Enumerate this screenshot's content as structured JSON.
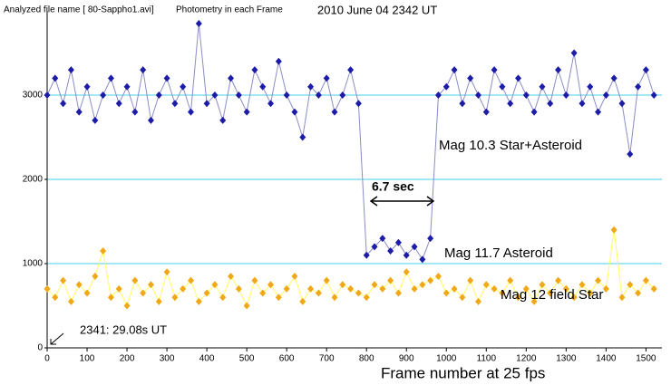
{
  "chart_data": {
    "type": "line",
    "header": [
      "Analyzed file name [ 80-Sappho1.avi]",
      "Photometry in each Frame"
    ],
    "title": "2010 June 04  2342 UT",
    "x_label": "Frame number at 25 fps",
    "annotations": [
      "Mag 10.3 Star+Asteroid",
      "6.7 sec",
      "Mag 11.7 Asteroid",
      "Mag 12 field Star",
      "2341: 29.08s UT"
    ],
    "x": [
      0,
      20,
      40,
      60,
      80,
      100,
      120,
      140,
      160,
      180,
      200,
      220,
      240,
      260,
      280,
      300,
      320,
      340,
      360,
      380,
      400,
      420,
      440,
      460,
      480,
      500,
      520,
      540,
      560,
      580,
      600,
      620,
      640,
      660,
      680,
      700,
      720,
      740,
      760,
      780,
      800,
      820,
      840,
      860,
      880,
      900,
      920,
      940,
      960,
      980,
      1000,
      1020,
      1040,
      1060,
      1080,
      1100,
      1120,
      1140,
      1160,
      1180,
      1200,
      1220,
      1240,
      1260,
      1280,
      1300,
      1320,
      1340,
      1360,
      1380,
      1400,
      1420,
      1440,
      1460,
      1480,
      1500,
      1520
    ],
    "series": [
      {
        "name": "Mag 10.3 Star+Asteroid",
        "color": "#1c1ca8",
        "line_color": "#8c8cc8",
        "values": [
          3000,
          3200,
          2900,
          3300,
          2800,
          3100,
          2700,
          3000,
          3200,
          2900,
          3100,
          2800,
          3300,
          2700,
          3000,
          3200,
          2900,
          3100,
          2800,
          3850,
          2900,
          3000,
          2700,
          3200,
          3000,
          2800,
          3300,
          3100,
          2900,
          3400,
          3000,
          2800,
          2500,
          3100,
          3000,
          3200,
          2800,
          3000,
          3300,
          2900,
          1100,
          1200,
          1300,
          1150,
          1250,
          1100,
          1200,
          1050,
          1300,
          3000,
          3100,
          3300,
          2900,
          3200,
          3000,
          2800,
          3300,
          3100,
          2900,
          3200,
          3000,
          2800,
          3100,
          2900,
          3300,
          3000,
          3500,
          2900,
          3100,
          2800,
          3000,
          3200,
          2900,
          2300,
          3100,
          3300,
          3000
        ]
      },
      {
        "name": "Mag 12 field Star",
        "color": "#f0a818",
        "line_color": "#ffff60",
        "values": [
          700,
          600,
          800,
          550,
          750,
          650,
          850,
          1150,
          600,
          700,
          500,
          800,
          650,
          750,
          550,
          900,
          600,
          700,
          800,
          550,
          650,
          750,
          600,
          850,
          700,
          500,
          800,
          650,
          750,
          600,
          700,
          850,
          550,
          700,
          650,
          800,
          600,
          750,
          700,
          650,
          600,
          750,
          700,
          800,
          650,
          900,
          700,
          750,
          800,
          850,
          650,
          700,
          600,
          800,
          550,
          750,
          700,
          650,
          800,
          600,
          700,
          550,
          750,
          650,
          800,
          700,
          600,
          750,
          650,
          800,
          700,
          1400,
          600,
          750,
          650,
          800,
          700
        ]
      }
    ],
    "xlim": [
      0,
      1540
    ],
    "ylim": [
      0,
      4000
    ],
    "xticks": [
      0,
      100,
      200,
      300,
      400,
      500,
      600,
      700,
      800,
      900,
      1000,
      1100,
      1200,
      1300,
      1400,
      1500
    ],
    "yticks": [
      0,
      1000,
      2000,
      3000
    ],
    "grid": true,
    "grid_color": "#40d0e8"
  }
}
